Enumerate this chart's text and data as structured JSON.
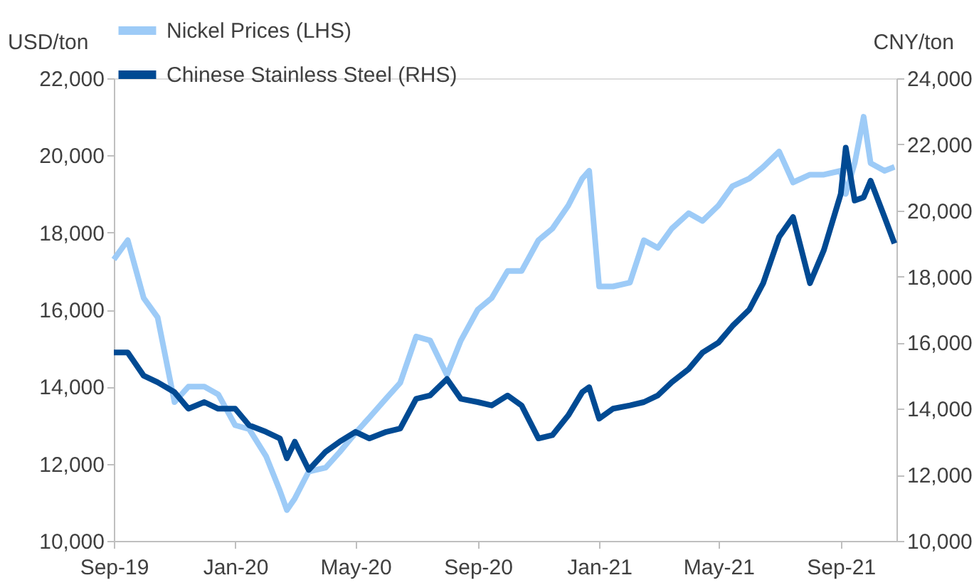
{
  "chart_data": {
    "type": "line",
    "ylabel": "USD/ton",
    "y2label": "CNY/ton",
    "x": [
      "2019-09-01",
      "2019-09-15",
      "2019-10-01",
      "2019-10-15",
      "2019-11-01",
      "2019-11-15",
      "2019-12-01",
      "2019-12-15",
      "2020-01-01",
      "2020-01-15",
      "2020-02-01",
      "2020-02-15",
      "2020-02-22",
      "2020-03-01",
      "2020-03-15",
      "2020-04-01",
      "2020-04-15",
      "2020-05-01",
      "2020-05-15",
      "2020-06-01",
      "2020-06-15",
      "2020-07-01",
      "2020-07-15",
      "2020-08-01",
      "2020-08-15",
      "2020-09-01",
      "2020-09-15",
      "2020-10-01",
      "2020-10-15",
      "2020-11-01",
      "2020-11-15",
      "2020-12-01",
      "2020-12-15",
      "2020-12-22",
      "2021-01-01",
      "2021-01-15",
      "2021-02-01",
      "2021-02-15",
      "2021-03-01",
      "2021-03-15",
      "2021-04-01",
      "2021-04-15",
      "2021-05-01",
      "2021-05-15",
      "2021-06-01",
      "2021-06-15",
      "2021-07-01",
      "2021-07-15",
      "2021-08-01",
      "2021-08-15",
      "2021-09-01",
      "2021-09-06",
      "2021-09-15",
      "2021-09-24",
      "2021-10-01",
      "2021-10-15",
      "2021-10-25"
    ],
    "series": [
      {
        "name": "Nickel Prices (LHS)",
        "color": "#9dcbf7",
        "values": [
          17300,
          17800,
          16300,
          15800,
          13600,
          14000,
          14000,
          13800,
          13000,
          12900,
          12200,
          11300,
          10800,
          11100,
          11800,
          11900,
          12300,
          12800,
          13200,
          13700,
          14100,
          15300,
          15200,
          14300,
          15200,
          16000,
          16300,
          17000,
          17000,
          17800,
          18100,
          18700,
          19400,
          19600,
          16600,
          16600,
          16700,
          17800,
          17600,
          18100,
          18500,
          18300,
          18700,
          19200,
          19400,
          19700,
          20100,
          19300,
          19500,
          19500,
          19600,
          19000,
          19800,
          21000,
          19800,
          19600,
          19700
        ]
      },
      {
        "name": "Chinese Stainless Steel (RHS)",
        "color": "#004a93",
        "axis": "y2",
        "values": [
          15700,
          15700,
          15000,
          14800,
          14500,
          14000,
          14200,
          14000,
          14000,
          13500,
          13300,
          13100,
          12500,
          13000,
          12150,
          12700,
          13000,
          13300,
          13100,
          13300,
          13400,
          14300,
          14400,
          14900,
          14300,
          14200,
          14100,
          14400,
          14100,
          13100,
          13200,
          13800,
          14500,
          14650,
          13700,
          14000,
          14100,
          14200,
          14400,
          14800,
          15200,
          15700,
          16000,
          16500,
          17000,
          17800,
          19200,
          19800,
          17800,
          18800,
          20500,
          21900,
          20300,
          20400,
          20900,
          19800,
          19000
        ]
      }
    ],
    "xlim": [
      "2019-09-01",
      "2021-10-27"
    ],
    "xticks": [
      {
        "value": "2019-09-01",
        "label": "Sep-19"
      },
      {
        "value": "2020-01-01",
        "label": "Jan-20"
      },
      {
        "value": "2020-05-01",
        "label": "May-20"
      },
      {
        "value": "2020-09-01",
        "label": "Sep-20"
      },
      {
        "value": "2021-01-01",
        "label": "Jan-21"
      },
      {
        "value": "2021-05-01",
        "label": "May-21"
      },
      {
        "value": "2021-09-01",
        "label": "Sep-21"
      }
    ],
    "ylim": [
      10000,
      22000
    ],
    "yticks": [
      {
        "value": 10000,
        "label": "10,000"
      },
      {
        "value": 12000,
        "label": "12,000"
      },
      {
        "value": 14000,
        "label": "14,000"
      },
      {
        "value": 16000,
        "label": "16,000"
      },
      {
        "value": 18000,
        "label": "18,000"
      },
      {
        "value": 20000,
        "label": "20,000"
      },
      {
        "value": 22000,
        "label": "22,000"
      }
    ],
    "y2lim": [
      10000,
      24000
    ],
    "y2ticks": [
      {
        "value": 10000,
        "label": "10,000"
      },
      {
        "value": 12000,
        "label": "12,000"
      },
      {
        "value": 14000,
        "label": "14,000"
      },
      {
        "value": 16000,
        "label": "16,000"
      },
      {
        "value": 18000,
        "label": "18,000"
      },
      {
        "value": 20000,
        "label": "20,000"
      },
      {
        "value": 22000,
        "label": "22,000"
      },
      {
        "value": 24000,
        "label": "24,000"
      }
    ],
    "legend": "top",
    "grid": false,
    "marker": "none",
    "line_style": "solid"
  }
}
